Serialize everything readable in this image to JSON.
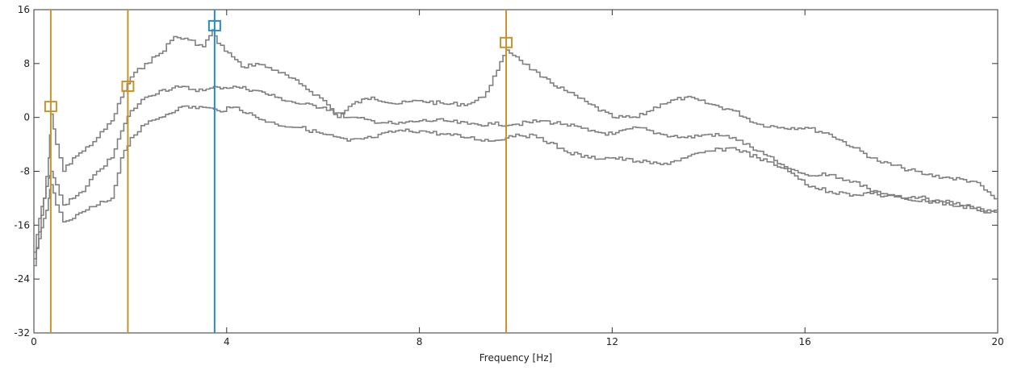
{
  "chart_data": {
    "type": "line",
    "title": "",
    "xlabel": "Frequency [Hz]",
    "ylabel": "",
    "xlim": [
      0,
      20
    ],
    "ylim": [
      -32,
      16
    ],
    "xticks": [
      0,
      4,
      8,
      12,
      16,
      20
    ],
    "yticks": [
      -32,
      -24,
      -16,
      -8,
      0,
      8,
      16
    ],
    "grid": false,
    "series": [
      {
        "color": "#808080",
        "x": [
          0.0,
          0.1,
          0.2,
          0.3,
          0.35,
          0.45,
          0.6,
          0.8,
          1.0,
          1.3,
          1.6,
          1.8,
          2.0,
          2.3,
          2.6,
          2.9,
          3.2,
          3.5,
          3.7,
          3.8,
          4.1,
          4.3,
          4.6,
          5.0,
          5.5,
          6.0,
          6.3,
          6.6,
          7.0,
          7.5,
          8.0,
          8.5,
          9.0,
          9.3,
          9.6,
          9.8,
          10.0,
          10.5,
          11.0,
          11.5,
          12.0,
          12.5,
          13.0,
          13.5,
          14.0,
          14.5,
          15.0,
          15.5,
          16.0,
          16.5,
          17.0,
          17.5,
          18.0,
          18.5,
          19.0,
          19.5,
          20.0
        ],
        "y": [
          -22,
          -17,
          -12,
          -6,
          0.5,
          -4,
          -8,
          -6,
          -5,
          -3,
          -0.5,
          3,
          6,
          8,
          9.5,
          12,
          11.5,
          10.5,
          13,
          11,
          9,
          7.5,
          8,
          7,
          5,
          2.5,
          0,
          2,
          3,
          2,
          2.5,
          2,
          2,
          3,
          7,
          10,
          9,
          6,
          4,
          2,
          0,
          0,
          2,
          3,
          2,
          1,
          -1,
          -1.5,
          -1.5,
          -2.5,
          -4.5,
          -6.5,
          -7.5,
          -8.5,
          -9,
          -9.5,
          -12.5
        ]
      },
      {
        "color": "#808080",
        "x": [
          0.0,
          0.1,
          0.2,
          0.3,
          0.35,
          0.45,
          0.6,
          0.8,
          1.0,
          1.3,
          1.6,
          1.8,
          2.0,
          2.3,
          2.6,
          3.0,
          3.5,
          3.8,
          4.2,
          4.6,
          5.0,
          5.5,
          6.0,
          6.5,
          7.0,
          7.5,
          8.0,
          8.5,
          9.0,
          9.5,
          10.0,
          10.5,
          11.0,
          11.5,
          12.0,
          12.5,
          13.0,
          13.5,
          14.0,
          14.5,
          15.0,
          15.5,
          16.0,
          16.5,
          17.0,
          17.5,
          18.0,
          18.5,
          19.0,
          19.5,
          20.0
        ],
        "y": [
          -20,
          -15,
          -12,
          -9,
          -8,
          -10,
          -13,
          -12,
          -11,
          -8,
          -6,
          -2,
          1,
          3,
          4,
          4.5,
          4,
          4.5,
          4.5,
          4,
          3,
          2,
          1.5,
          0,
          -0.5,
          -1,
          -0.5,
          -0.5,
          -1,
          -1,
          -1,
          -0.5,
          -1,
          -2,
          -2.5,
          -1.5,
          -2.5,
          -3,
          -2.5,
          -3,
          -5,
          -7,
          -10,
          -11,
          -11.5,
          -11,
          -12,
          -12,
          -13,
          -13.5,
          -14.5
        ]
      },
      {
        "color": "#808080",
        "x": [
          0.0,
          0.1,
          0.2,
          0.3,
          0.35,
          0.45,
          0.6,
          0.8,
          1.0,
          1.3,
          1.6,
          1.8,
          2.0,
          2.3,
          2.6,
          3.0,
          3.5,
          3.8,
          4.2,
          4.6,
          5.0,
          5.5,
          6.0,
          6.5,
          7.0,
          7.5,
          8.0,
          8.5,
          9.0,
          9.5,
          10.0,
          10.5,
          11.0,
          11.5,
          12.0,
          12.5,
          13.0,
          13.5,
          14.0,
          14.5,
          15.0,
          15.5,
          16.0,
          16.5,
          17.0,
          17.5,
          18.0,
          18.5,
          19.0,
          19.5,
          20.0
        ],
        "y": [
          -21,
          -18,
          -15,
          -12,
          -10,
          -13,
          -15.5,
          -15,
          -14,
          -13,
          -12,
          -6,
          -3,
          -1,
          0,
          1.5,
          1.5,
          1,
          1.5,
          0,
          -1,
          -1.5,
          -2.5,
          -3.5,
          -3,
          -2,
          -2,
          -2.5,
          -3,
          -3.5,
          -2.5,
          -3,
          -5,
          -6,
          -6,
          -6.5,
          -7,
          -6,
          -5,
          -4.5,
          -6,
          -7.5,
          -8.5,
          -8.5,
          -9.5,
          -11.5,
          -12,
          -12.5,
          -12.5,
          -13.5,
          -14
        ]
      }
    ],
    "markers": [
      {
        "x": 0.35,
        "y": 1.5,
        "color": "#C8922D"
      },
      {
        "x": 1.95,
        "y": 4.5,
        "color": "#C8922D"
      },
      {
        "x": 3.75,
        "y": 13.5,
        "color": "#2C8ACB"
      },
      {
        "x": 9.8,
        "y": 11,
        "color": "#C8922D"
      }
    ]
  }
}
